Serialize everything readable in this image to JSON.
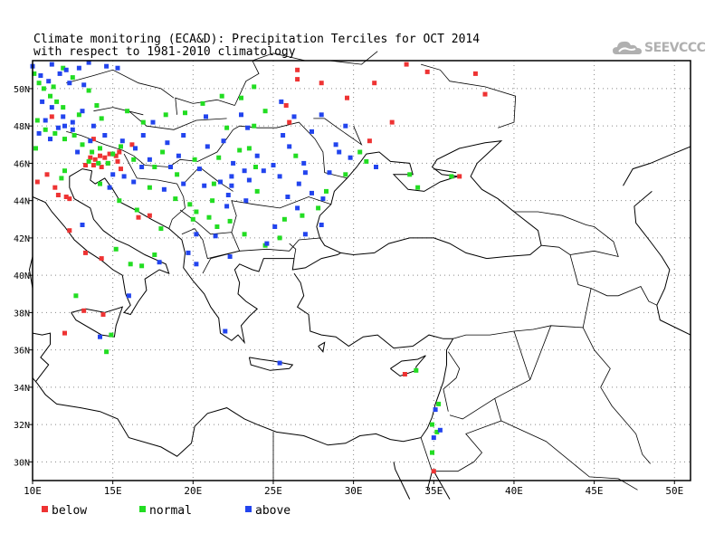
{
  "title": {
    "line1": "Climate monitoring (ECA&D): Precipitation Terciles for OCT 2014",
    "line2": "with respect to 1981-2010 climatology"
  },
  "logo": {
    "text": "SEEVCCC",
    "icon": "cloud-icon"
  },
  "axes": {
    "lon_range": [
      10,
      51
    ],
    "lat_range": [
      29,
      51.5
    ],
    "x_ticks": [
      {
        "value": 10,
        "label": "10E"
      },
      {
        "value": 15,
        "label": "15E"
      },
      {
        "value": 20,
        "label": "20E"
      },
      {
        "value": 25,
        "label": "25E"
      },
      {
        "value": 30,
        "label": "30E"
      },
      {
        "value": 35,
        "label": "35E"
      },
      {
        "value": 40,
        "label": "40E"
      },
      {
        "value": 45,
        "label": "45E"
      },
      {
        "value": 50,
        "label": "50E"
      }
    ],
    "y_ticks": [
      {
        "value": 30,
        "label": "30N"
      },
      {
        "value": 32,
        "label": "32N"
      },
      {
        "value": 34,
        "label": "34N"
      },
      {
        "value": 36,
        "label": "36N"
      },
      {
        "value": 38,
        "label": "38N"
      },
      {
        "value": 40,
        "label": "40N"
      },
      {
        "value": 42,
        "label": "42N"
      },
      {
        "value": 44,
        "label": "44N"
      },
      {
        "value": 46,
        "label": "46N"
      },
      {
        "value": 48,
        "label": "48N"
      },
      {
        "value": 50,
        "label": "50N"
      }
    ],
    "grid": "dotted"
  },
  "legend": [
    {
      "key": "below",
      "label": "below",
      "color": "#ee3333"
    },
    {
      "key": "normal",
      "label": "normal",
      "color": "#22dd22"
    },
    {
      "key": "above",
      "label": "above",
      "color": "#2244ee"
    }
  ],
  "colors": {
    "below": "#ee3333",
    "normal": "#22dd22",
    "above": "#2244ee",
    "coast": "#000000"
  },
  "chart_data": {
    "type": "scatter",
    "x_unit": "degrees E",
    "y_unit": "degrees N",
    "series": [
      {
        "name": "below",
        "points": [
          [
            13.6,
            46.3
          ],
          [
            13.9,
            46.2
          ],
          [
            14.2,
            46.4
          ],
          [
            14.5,
            46.3
          ],
          [
            14.8,
            46.5
          ],
          [
            15.2,
            46.4
          ],
          [
            13.8,
            45.9
          ],
          [
            14.3,
            45.8
          ],
          [
            15.3,
            46.1
          ],
          [
            13.3,
            45.9
          ],
          [
            15.4,
            46.6
          ],
          [
            11.4,
            44.7
          ],
          [
            11.6,
            44.3
          ],
          [
            12.1,
            44.2
          ],
          [
            12.3,
            44.1
          ],
          [
            10.3,
            45.0
          ],
          [
            12.3,
            42.4
          ],
          [
            13.3,
            41.2
          ],
          [
            14.3,
            40.9
          ],
          [
            13.2,
            38.1
          ],
          [
            12.0,
            36.9
          ],
          [
            14.4,
            37.9
          ],
          [
            33.2,
            34.7
          ],
          [
            36.6,
            45.3
          ],
          [
            16.6,
            43.1
          ],
          [
            17.3,
            43.2
          ],
          [
            13.8,
            47.3
          ],
          [
            15.5,
            45.7
          ],
          [
            16.2,
            47.0
          ],
          [
            26.5,
            50.5
          ],
          [
            28.0,
            50.3
          ],
          [
            31.3,
            50.3
          ],
          [
            33.3,
            51.3
          ],
          [
            34.6,
            50.9
          ],
          [
            37.6,
            50.8
          ],
          [
            38.2,
            49.7
          ],
          [
            32.4,
            48.2
          ],
          [
            29.6,
            49.5
          ],
          [
            25.8,
            49.1
          ],
          [
            26.0,
            48.2
          ],
          [
            31.0,
            47.2
          ],
          [
            26.5,
            51.0
          ],
          [
            35.0,
            29.5
          ],
          [
            11.2,
            48.5
          ],
          [
            10.9,
            45.4
          ],
          [
            14.7,
            46.0
          ]
        ]
      },
      {
        "name": "normal",
        "points": [
          [
            10.1,
            50.8
          ],
          [
            10.4,
            50.3
          ],
          [
            10.7,
            50.0
          ],
          [
            11.1,
            49.6
          ],
          [
            11.5,
            49.3
          ],
          [
            11.9,
            49.0
          ],
          [
            10.3,
            48.3
          ],
          [
            10.8,
            47.8
          ],
          [
            11.4,
            47.6
          ],
          [
            12.0,
            47.3
          ],
          [
            12.6,
            47.5
          ],
          [
            13.1,
            47.0
          ],
          [
            13.5,
            46.1
          ],
          [
            14.1,
            46.0
          ],
          [
            14.7,
            46.0
          ],
          [
            15.0,
            46.5
          ],
          [
            15.5,
            46.9
          ],
          [
            13.7,
            46.6
          ],
          [
            14.2,
            46.8
          ],
          [
            12.0,
            45.6
          ],
          [
            11.8,
            45.2
          ],
          [
            10.2,
            46.8
          ],
          [
            11.9,
            51.1
          ],
          [
            12.5,
            50.6
          ],
          [
            13.5,
            49.9
          ],
          [
            14.0,
            49.1
          ],
          [
            15.9,
            48.8
          ],
          [
            16.9,
            48.2
          ],
          [
            18.3,
            48.6
          ],
          [
            19.5,
            48.7
          ],
          [
            20.6,
            49.2
          ],
          [
            21.8,
            49.6
          ],
          [
            23.0,
            49.5
          ],
          [
            23.8,
            50.1
          ],
          [
            24.5,
            48.8
          ],
          [
            22.1,
            47.9
          ],
          [
            23.5,
            46.8
          ],
          [
            21.6,
            46.3
          ],
          [
            20.1,
            46.2
          ],
          [
            19.0,
            45.4
          ],
          [
            18.9,
            44.1
          ],
          [
            19.8,
            43.8
          ],
          [
            20.2,
            43.4
          ],
          [
            21.0,
            43.1
          ],
          [
            21.5,
            42.6
          ],
          [
            22.3,
            42.9
          ],
          [
            23.2,
            42.2
          ],
          [
            24.5,
            41.6
          ],
          [
            25.4,
            42.0
          ],
          [
            25.7,
            43.0
          ],
          [
            26.8,
            43.2
          ],
          [
            27.8,
            43.6
          ],
          [
            28.3,
            44.5
          ],
          [
            29.5,
            45.4
          ],
          [
            30.8,
            46.1
          ],
          [
            30.4,
            46.6
          ],
          [
            33.5,
            45.4
          ],
          [
            34.0,
            44.7
          ],
          [
            36.1,
            45.3
          ],
          [
            16.8,
            40.5
          ],
          [
            16.1,
            40.6
          ],
          [
            12.7,
            38.9
          ],
          [
            14.9,
            36.8
          ],
          [
            14.6,
            35.9
          ],
          [
            33.9,
            34.9
          ],
          [
            35.3,
            33.1
          ],
          [
            34.9,
            32.0
          ],
          [
            35.2,
            31.6
          ],
          [
            34.9,
            30.5
          ],
          [
            14.2,
            44.9
          ],
          [
            15.4,
            44.0
          ],
          [
            16.5,
            43.5
          ],
          [
            17.6,
            41.1
          ],
          [
            15.2,
            41.4
          ],
          [
            22.9,
            46.7
          ],
          [
            23.8,
            48.0
          ],
          [
            17.3,
            44.7
          ],
          [
            21.3,
            44.9
          ],
          [
            20.0,
            43.0
          ],
          [
            18.0,
            42.5
          ],
          [
            16.3,
            46.2
          ],
          [
            18.1,
            46.6
          ],
          [
            17.6,
            45.8
          ],
          [
            11.3,
            50.1
          ],
          [
            12.9,
            48.6
          ],
          [
            14.3,
            48.4
          ],
          [
            21.2,
            44.0
          ],
          [
            24.0,
            44.5
          ],
          [
            26.4,
            46.4
          ],
          [
            23.9,
            45.8
          ]
        ]
      },
      {
        "name": "above",
        "points": [
          [
            10.0,
            51.2
          ],
          [
            10.5,
            50.7
          ],
          [
            11.0,
            50.4
          ],
          [
            11.7,
            50.8
          ],
          [
            12.3,
            50.3
          ],
          [
            12.9,
            51.1
          ],
          [
            13.2,
            50.2
          ],
          [
            10.6,
            49.3
          ],
          [
            11.2,
            49.0
          ],
          [
            11.9,
            48.5
          ],
          [
            12.5,
            48.2
          ],
          [
            13.1,
            48.8
          ],
          [
            13.8,
            48.0
          ],
          [
            10.4,
            47.6
          ],
          [
            11.1,
            47.3
          ],
          [
            12.0,
            48.0
          ],
          [
            14.5,
            47.5
          ],
          [
            15.6,
            47.2
          ],
          [
            16.4,
            46.8
          ],
          [
            17.3,
            46.2
          ],
          [
            18.4,
            47.1
          ],
          [
            19.1,
            46.4
          ],
          [
            20.4,
            45.7
          ],
          [
            21.7,
            45.0
          ],
          [
            22.4,
            45.3
          ],
          [
            23.5,
            45.1
          ],
          [
            24.4,
            45.6
          ],
          [
            25.4,
            45.3
          ],
          [
            26.6,
            44.9
          ],
          [
            27.4,
            44.4
          ],
          [
            28.1,
            44.1
          ],
          [
            23.3,
            44.0
          ],
          [
            22.1,
            43.7
          ],
          [
            22.2,
            44.3
          ],
          [
            18.6,
            45.8
          ],
          [
            19.4,
            44.9
          ],
          [
            20.7,
            44.8
          ],
          [
            20.2,
            42.2
          ],
          [
            16.3,
            45.0
          ],
          [
            16.8,
            45.8
          ],
          [
            15.0,
            45.4
          ],
          [
            14.8,
            44.7
          ],
          [
            19.7,
            41.2
          ],
          [
            20.2,
            40.6
          ],
          [
            22.3,
            41.0
          ],
          [
            24.6,
            41.7
          ],
          [
            25.1,
            42.6
          ],
          [
            27.0,
            42.2
          ],
          [
            28.0,
            42.7
          ],
          [
            25.0,
            45.9
          ],
          [
            26.0,
            46.9
          ],
          [
            27.4,
            47.7
          ],
          [
            28.9,
            47.0
          ],
          [
            29.8,
            46.3
          ],
          [
            31.4,
            45.8
          ],
          [
            25.6,
            47.5
          ],
          [
            26.3,
            48.5
          ],
          [
            23.4,
            47.9
          ],
          [
            21.9,
            47.2
          ],
          [
            26.9,
            46.0
          ],
          [
            29.5,
            48.0
          ],
          [
            28.0,
            48.6
          ],
          [
            25.5,
            49.3
          ],
          [
            23.0,
            48.6
          ],
          [
            24.0,
            46.4
          ],
          [
            22.5,
            46.0
          ],
          [
            20.9,
            46.9
          ],
          [
            35.0,
            31.3
          ],
          [
            35.4,
            31.7
          ],
          [
            35.1,
            32.8
          ],
          [
            14.2,
            36.7
          ],
          [
            13.1,
            42.7
          ],
          [
            16.0,
            38.9
          ],
          [
            25.4,
            35.3
          ],
          [
            22.0,
            37.0
          ],
          [
            17.9,
            40.7
          ],
          [
            15.7,
            45.3
          ],
          [
            18.2,
            44.6
          ],
          [
            19.4,
            47.5
          ],
          [
            12.8,
            46.6
          ],
          [
            10.8,
            48.3
          ],
          [
            11.6,
            47.9
          ],
          [
            12.5,
            47.8
          ],
          [
            11.2,
            51.3
          ],
          [
            12.1,
            51.0
          ],
          [
            13.5,
            51.4
          ],
          [
            14.6,
            51.2
          ],
          [
            15.3,
            51.1
          ],
          [
            13.6,
            47.2
          ],
          [
            16.9,
            47.5
          ],
          [
            17.5,
            48.2
          ],
          [
            20.8,
            48.5
          ],
          [
            22.4,
            44.8
          ],
          [
            21.4,
            42.1
          ],
          [
            23.2,
            45.6
          ],
          [
            25.9,
            44.2
          ],
          [
            26.5,
            43.6
          ],
          [
            27.0,
            45.5
          ],
          [
            28.5,
            45.5
          ],
          [
            29.1,
            46.6
          ]
        ]
      }
    ]
  }
}
